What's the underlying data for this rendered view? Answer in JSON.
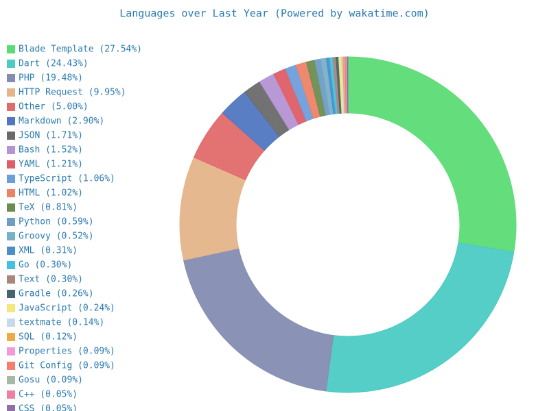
{
  "chart_data": {
    "type": "donut",
    "title": "Languages over Last Year (Powered by wakatime.com)",
    "categories": [
      "Blade Template (27.54%)",
      "Dart (24.43%)",
      "PHP (19.48%)",
      "HTTP Request (9.95%)",
      "Other (5.00%)",
      "Markdown (2.90%)",
      "JSON (1.71%)",
      "Bash (1.52%)",
      "YAML (1.21%)",
      "TypeScript (1.06%)",
      "HTML (1.02%)",
      "TeX (0.81%)",
      "Python (0.59%)",
      "Groovy (0.52%)",
      "XML (0.31%)",
      "Go (0.30%)",
      "Text (0.30%)",
      "Gradle (0.26%)",
      "JavaScript (0.24%)",
      "textmate (0.14%)",
      "SQL (0.12%)",
      "Properties (0.09%)",
      "Git Config (0.09%)",
      "Gosu (0.09%)",
      "C++ (0.05%)",
      "CSS (0.05%)"
    ],
    "values": [
      27.54,
      24.43,
      19.48,
      9.95,
      5.0,
      2.9,
      1.71,
      1.52,
      1.21,
      1.06,
      1.02,
      0.81,
      0.59,
      0.52,
      0.31,
      0.3,
      0.3,
      0.26,
      0.24,
      0.14,
      0.12,
      0.09,
      0.09,
      0.09,
      0.05,
      0.05
    ],
    "colors": [
      "#5cdc75",
      "#4bcbc3",
      "#848db1",
      "#e5b48a",
      "#e26a6a",
      "#5077c0",
      "#6a6a6a",
      "#b494d4",
      "#de5d67",
      "#6d9edc",
      "#ed8266",
      "#6c8d50",
      "#6f9dc4",
      "#77b1c9",
      "#4b8dc8",
      "#40c3e0",
      "#ab8579",
      "#466570",
      "#f5e67f",
      "#c6d8ef",
      "#eeaa44",
      "#f29ad8",
      "#f77e6d",
      "#a8b8a6",
      "#f07fa0",
      "#8e70a8"
    ]
  }
}
